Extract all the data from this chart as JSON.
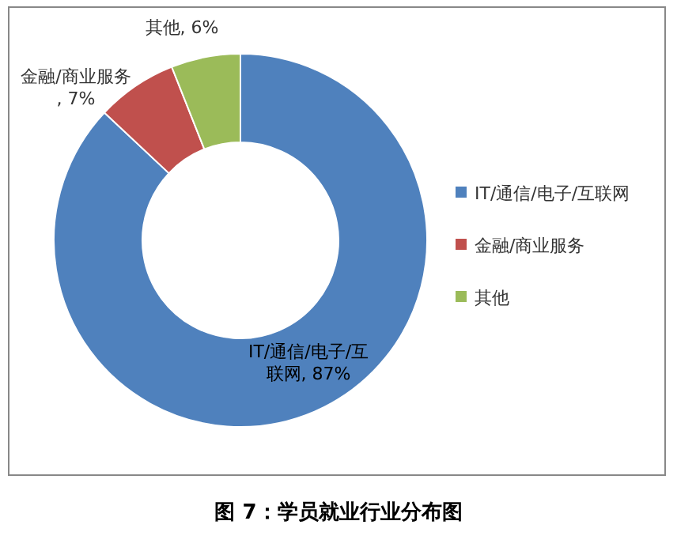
{
  "chart_data": {
    "type": "donut",
    "title": "图 7：学员就业行业分布图",
    "categories": [
      "IT/通信/电子/互联网",
      "金融/商业服务",
      "其他"
    ],
    "values": [
      87,
      7,
      6
    ],
    "colors": [
      "#4f81bd",
      "#c0504d",
      "#9bbb59"
    ],
    "value_labels": [
      "IT/通信/电子/互联网, 87%",
      "金融/商业服务, 7%",
      "其他, 6%"
    ],
    "legend": "right"
  }
}
